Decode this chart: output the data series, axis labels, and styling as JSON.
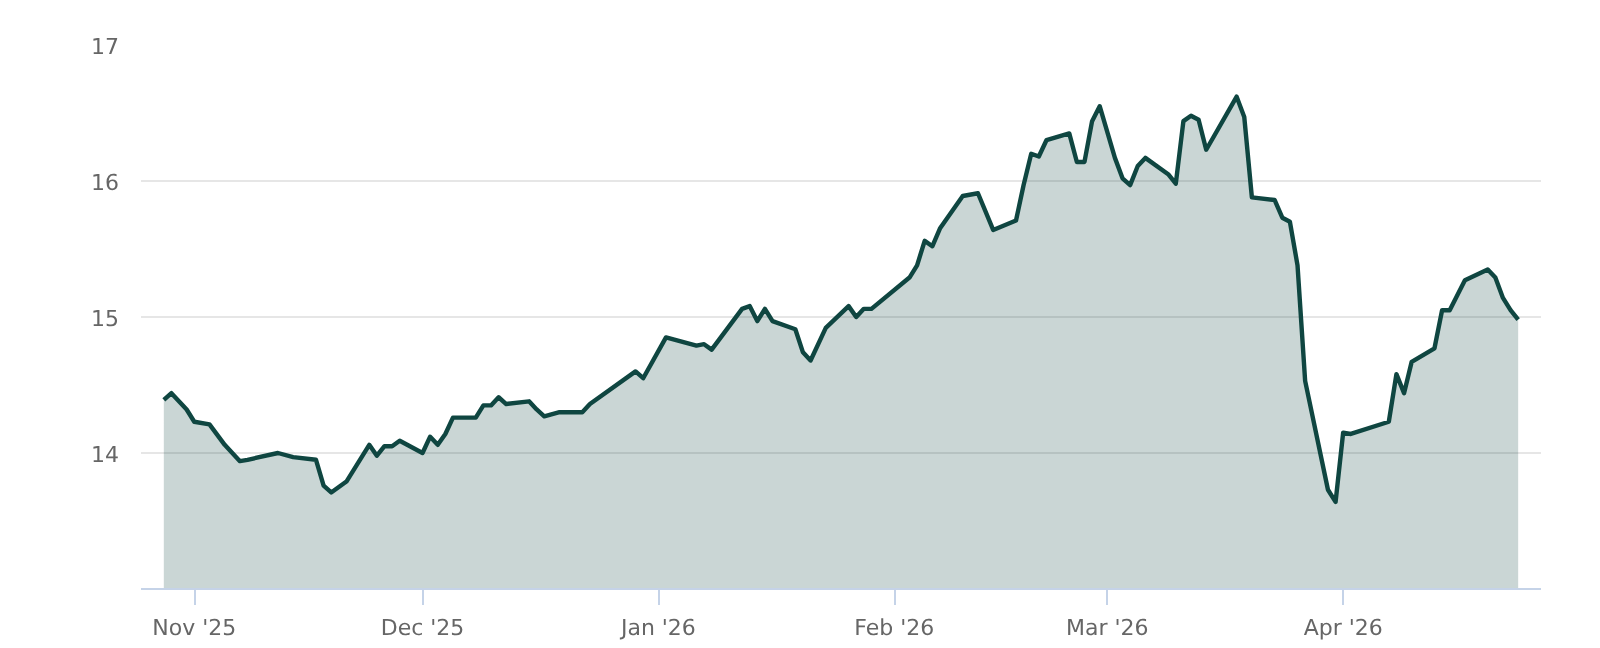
{
  "chart_data": {
    "type": "area",
    "color": "#0f4641",
    "grid": "y",
    "marker": "none",
    "line_style": "solid",
    "x": [
      "2025-10-28",
      "2025-10-29",
      "2025-10-31",
      "2025-11-01",
      "2025-11-03",
      "2025-11-05",
      "2025-11-06",
      "2025-11-07",
      "2025-11-08",
      "2025-11-12",
      "2025-11-14",
      "2025-11-17",
      "2025-11-18",
      "2025-11-19",
      "2025-11-21",
      "2025-11-24",
      "2025-11-25",
      "2025-11-26",
      "2025-11-27",
      "2025-11-28",
      "2025-12-01",
      "2025-12-02",
      "2025-12-03",
      "2025-12-04",
      "2025-12-05",
      "2025-12-08",
      "2025-12-09",
      "2025-12-10",
      "2025-12-11",
      "2025-12-12",
      "2025-12-15",
      "2025-12-16",
      "2025-12-17",
      "2025-12-19",
      "2025-12-22",
      "2025-12-23",
      "2025-12-29",
      "2025-12-30",
      "2026-01-02",
      "2026-01-06",
      "2026-01-07",
      "2026-01-08",
      "2026-01-12",
      "2026-01-13",
      "2026-01-14",
      "2026-01-15",
      "2026-01-16",
      "2026-01-19",
      "2026-01-20",
      "2026-01-21",
      "2026-01-23",
      "2026-01-26",
      "2026-01-27",
      "2026-01-28",
      "2026-01-29",
      "2026-02-03",
      "2026-02-04",
      "2026-02-05",
      "2026-02-06",
      "2026-02-07",
      "2026-02-10",
      "2026-02-12",
      "2026-02-14",
      "2026-02-17",
      "2026-02-18",
      "2026-02-19",
      "2026-02-20",
      "2026-02-21",
      "2026-02-24",
      "2026-02-25",
      "2026-02-26",
      "2026-02-27",
      "2026-02-28",
      "2026-03-02",
      "2026-03-03",
      "2026-03-04",
      "2026-03-05",
      "2026-03-06",
      "2026-03-09",
      "2026-03-10",
      "2026-03-11",
      "2026-03-12",
      "2026-03-13",
      "2026-03-14",
      "2026-03-18",
      "2026-03-19",
      "2026-03-20",
      "2026-03-23",
      "2026-03-24",
      "2026-03-25",
      "2026-03-26",
      "2026-03-27",
      "2026-03-30",
      "2026-03-31",
      "2026-04-01",
      "2026-04-02",
      "2026-04-07",
      "2026-04-08",
      "2026-04-09",
      "2026-04-10",
      "2026-04-13",
      "2026-04-14",
      "2026-04-15",
      "2026-04-17",
      "2026-04-20",
      "2026-04-21",
      "2026-04-22",
      "2026-04-23",
      "2026-04-24"
    ],
    "values": [
      14.39,
      14.44,
      14.32,
      14.23,
      14.21,
      14.06,
      14.0,
      13.94,
      13.95,
      14.0,
      13.97,
      13.95,
      13.76,
      13.71,
      13.79,
      14.06,
      13.98,
      14.05,
      14.05,
      14.09,
      14.0,
      14.12,
      14.06,
      14.14,
      14.26,
      14.26,
      14.35,
      14.35,
      14.41,
      14.36,
      14.38,
      14.32,
      14.27,
      14.3,
      14.3,
      14.36,
      14.6,
      14.55,
      14.85,
      14.79,
      14.8,
      14.76,
      15.06,
      15.08,
      14.97,
      15.06,
      14.97,
      14.91,
      14.74,
      14.68,
      14.92,
      15.08,
      15.0,
      15.06,
      15.06,
      15.29,
      15.38,
      15.56,
      15.52,
      15.65,
      15.89,
      15.91,
      15.64,
      15.71,
      15.97,
      16.2,
      16.18,
      16.3,
      16.35,
      16.14,
      16.14,
      16.44,
      16.55,
      16.17,
      16.02,
      15.97,
      16.11,
      16.17,
      16.05,
      15.98,
      16.44,
      16.48,
      16.45,
      16.23,
      16.62,
      16.47,
      15.88,
      15.86,
      15.73,
      15.7,
      15.38,
      14.53,
      13.73,
      13.64,
      14.15,
      14.14,
      14.23,
      14.58,
      14.44,
      14.67,
      14.77,
      15.05,
      15.05,
      15.27,
      15.35,
      15.29,
      15.14,
      15.05,
      14.98
    ],
    "xlim": [
      "2025-10-25",
      "2026-04-27"
    ],
    "xticks": [
      {
        "value": "2025-11-01",
        "label": "Nov '25"
      },
      {
        "value": "2025-12-01",
        "label": "Dec '25"
      },
      {
        "value": "2026-01-01",
        "label": "Jan '26"
      },
      {
        "value": "2026-02-01",
        "label": "Feb '26"
      },
      {
        "value": "2026-03-01",
        "label": "Mar '26"
      },
      {
        "value": "2026-04-01",
        "label": "Apr '26"
      }
    ],
    "ylim": [
      13,
      17
    ],
    "yticks": [
      14,
      15,
      16,
      17
    ]
  }
}
